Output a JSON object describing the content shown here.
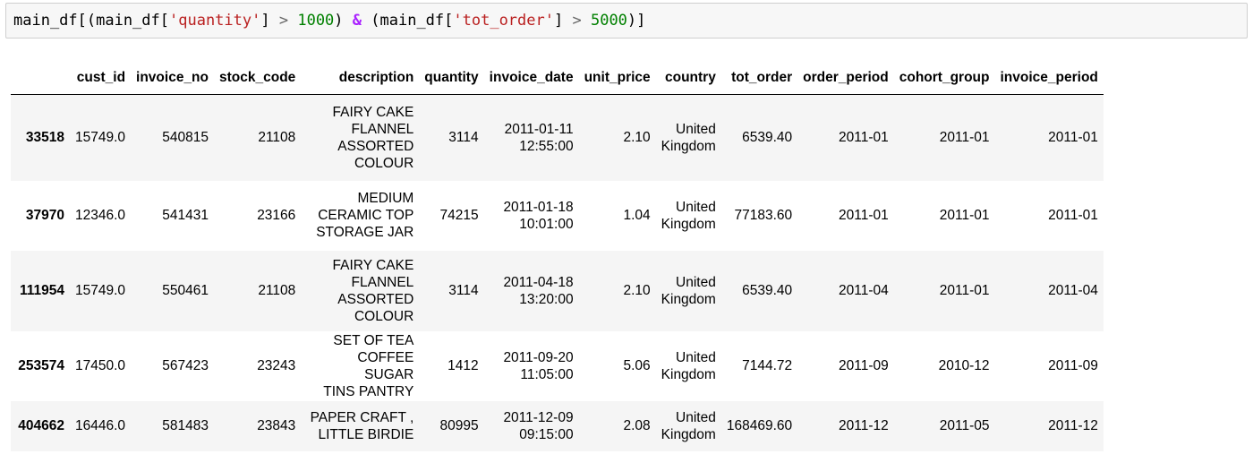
{
  "code_cell": {
    "prefix": "main_df[(main_df[",
    "str1": "'quantity'",
    "mid1": "] ",
    "gt1": ">",
    "sp1": " ",
    "num1": "1000",
    "close1": ") ",
    "amp": "&",
    "open2": " (main_df[",
    "str2": "'tot_order'",
    "mid2": "] ",
    "gt2": ">",
    "sp2": " ",
    "num2": "5000",
    "suffix": ")]"
  },
  "table": {
    "index_header": "",
    "headers": [
      "cust_id",
      "invoice_no",
      "stock_code",
      "description",
      "quantity",
      "invoice_date",
      "unit_price",
      "country",
      "tot_order",
      "order_period",
      "cohort_group",
      "invoice_period"
    ],
    "rows": [
      {
        "index": "33518",
        "cust_id": "15749.0",
        "invoice_no": "540815",
        "stock_code": "21108",
        "description": [
          "FAIRY CAKE",
          "FLANNEL",
          "ASSORTED",
          "COLOUR"
        ],
        "quantity": "3114",
        "invoice_date": [
          "2011-01-11",
          "12:55:00"
        ],
        "unit_price": "2.10",
        "country": [
          "United",
          "Kingdom"
        ],
        "tot_order": "6539.40",
        "order_period": "2011-01",
        "cohort_group": "2011-01",
        "invoice_period": "2011-01"
      },
      {
        "index": "37970",
        "cust_id": "12346.0",
        "invoice_no": "541431",
        "stock_code": "23166",
        "description": [
          "MEDIUM",
          "CERAMIC TOP",
          "STORAGE JAR"
        ],
        "quantity": "74215",
        "invoice_date": [
          "2011-01-18",
          "10:01:00"
        ],
        "unit_price": "1.04",
        "country": [
          "United",
          "Kingdom"
        ],
        "tot_order": "77183.60",
        "order_period": "2011-01",
        "cohort_group": "2011-01",
        "invoice_period": "2011-01"
      },
      {
        "index": "111954",
        "cust_id": "15749.0",
        "invoice_no": "550461",
        "stock_code": "21108",
        "description": [
          "FAIRY CAKE",
          "FLANNEL",
          "ASSORTED",
          "COLOUR"
        ],
        "quantity": "3114",
        "invoice_date": [
          "2011-04-18",
          "13:20:00"
        ],
        "unit_price": "2.10",
        "country": [
          "United",
          "Kingdom"
        ],
        "tot_order": "6539.40",
        "order_period": "2011-04",
        "cohort_group": "2011-01",
        "invoice_period": "2011-04"
      },
      {
        "index": "253574",
        "cust_id": "17450.0",
        "invoice_no": "567423",
        "stock_code": "23243",
        "description": [
          "SET OF TEA",
          "COFFEE SUGAR",
          "TINS PANTRY"
        ],
        "quantity": "1412",
        "invoice_date": [
          "2011-09-20",
          "11:05:00"
        ],
        "unit_price": "5.06",
        "country": [
          "United",
          "Kingdom"
        ],
        "tot_order": "7144.72",
        "order_period": "2011-09",
        "cohort_group": "2010-12",
        "invoice_period": "2011-09"
      },
      {
        "index": "404662",
        "cust_id": "16446.0",
        "invoice_no": "581483",
        "stock_code": "23843",
        "description": [
          "PAPER CRAFT ,",
          "LITTLE BIRDIE"
        ],
        "quantity": "80995",
        "invoice_date": [
          "2011-12-09",
          "09:15:00"
        ],
        "unit_price": "2.08",
        "country": [
          "United",
          "Kingdom"
        ],
        "tot_order": "168469.60",
        "order_period": "2011-12",
        "cohort_group": "2011-05",
        "invoice_period": "2011-12"
      }
    ]
  }
}
